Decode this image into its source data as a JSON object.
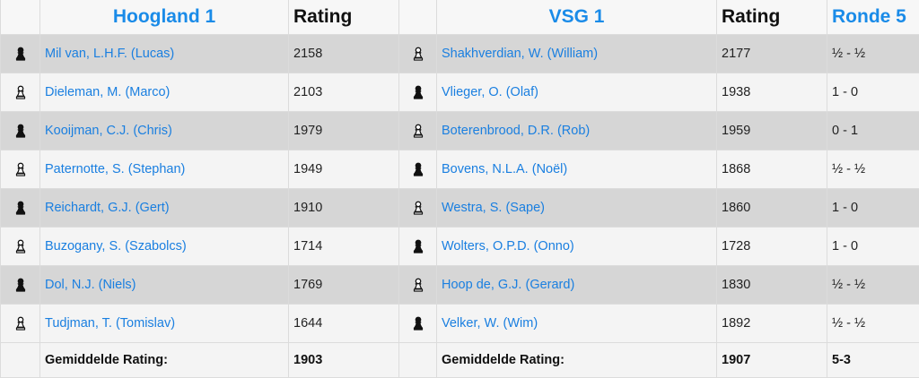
{
  "header": {
    "home_team": "Hoogland 1",
    "home_rating_label": "Rating",
    "away_team": "VSG 1",
    "away_rating_label": "Rating",
    "round": "Ronde 5"
  },
  "boards": [
    {
      "home_color": "black",
      "home_player": "Mil van, L.H.F. (Lucas)",
      "home_rating": "2158",
      "away_color": "white",
      "away_player": "Shakhverdian, W. (William)",
      "away_rating": "2177",
      "result": "½ - ½"
    },
    {
      "home_color": "white",
      "home_player": "Dieleman, M. (Marco)",
      "home_rating": "2103",
      "away_color": "black",
      "away_player": "Vlieger, O. (Olaf)",
      "away_rating": "1938",
      "result": "1 - 0"
    },
    {
      "home_color": "black",
      "home_player": "Kooijman, C.J. (Chris)",
      "home_rating": "1979",
      "away_color": "white",
      "away_player": "Boterenbrood, D.R. (Rob)",
      "away_rating": "1959",
      "result": "0 - 1"
    },
    {
      "home_color": "white",
      "home_player": "Paternotte, S. (Stephan)",
      "home_rating": "1949",
      "away_color": "black",
      "away_player": "Bovens, N.L.A. (Noël)",
      "away_rating": "1868",
      "result": "½ - ½"
    },
    {
      "home_color": "black",
      "home_player": "Reichardt, G.J. (Gert)",
      "home_rating": "1910",
      "away_color": "white",
      "away_player": "Westra, S. (Sape)",
      "away_rating": "1860",
      "result": "1 - 0"
    },
    {
      "home_color": "white",
      "home_player": "Buzogany, S. (Szabolcs)",
      "home_rating": "1714",
      "away_color": "black",
      "away_player": "Wolters, O.P.D. (Onno)",
      "away_rating": "1728",
      "result": "1 - 0"
    },
    {
      "home_color": "black",
      "home_player": "Dol, N.J. (Niels)",
      "home_rating": "1769",
      "away_color": "white",
      "away_player": "Hoop de, G.J. (Gerard)",
      "away_rating": "1830",
      "result": "½ - ½"
    },
    {
      "home_color": "white",
      "home_player": "Tudjman, T. (Tomislav)",
      "home_rating": "1644",
      "away_color": "black",
      "away_player": "Velker, W. (Wim)",
      "away_rating": "1892",
      "result": "½ - ½"
    }
  ],
  "footer": {
    "home_label": "Gemiddelde Rating:",
    "home_avg": "1903",
    "away_label": "Gemiddelde Rating:",
    "away_avg": "1907",
    "score": "5-3"
  },
  "icons": {
    "white_piece": "white-pawn-icon",
    "black_piece": "black-pawn-icon"
  },
  "colors": {
    "link": "#1a8be8",
    "row_odd": "#d6d6d6",
    "row_even": "#f4f4f4"
  }
}
